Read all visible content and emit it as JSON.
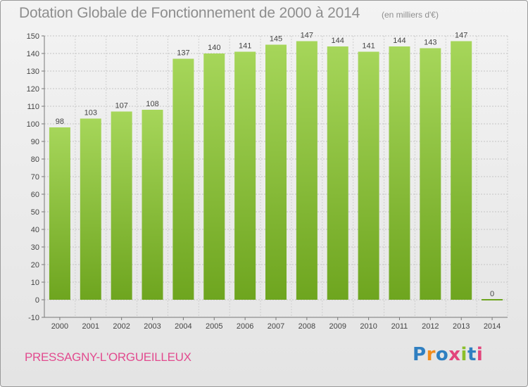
{
  "title": "Dotation Globale de Fonctionnement de 2000 à 2014",
  "subtitle": "(en milliers d'€)",
  "commune": "PRESSAGNY-L'ORGUEILLEUX",
  "logo": {
    "text": "Proxiti"
  },
  "colors": {
    "bar_top": "#a6d65a",
    "bar_bottom": "#6ea51f",
    "title": "#8e8e8e",
    "commune": "#e24b8f"
  },
  "chart_data": {
    "type": "bar",
    "categories": [
      "2000",
      "2001",
      "2002",
      "2003",
      "2004",
      "2005",
      "2006",
      "2007",
      "2008",
      "2009",
      "2010",
      "2011",
      "2012",
      "2013",
      "2014"
    ],
    "values": [
      98,
      103,
      107,
      108,
      137,
      140,
      141,
      145,
      147,
      144,
      141,
      144,
      143,
      147,
      0
    ],
    "title": "Dotation Globale de Fonctionnement de 2000 à 2014",
    "subtitle": "(en milliers d'€)",
    "xlabel": "",
    "ylabel": "",
    "ylim": [
      -10,
      150
    ],
    "yticks": [
      -10,
      0,
      10,
      20,
      30,
      40,
      50,
      60,
      70,
      80,
      90,
      100,
      110,
      120,
      130,
      140,
      150
    ],
    "grid": true,
    "legend": "none"
  }
}
